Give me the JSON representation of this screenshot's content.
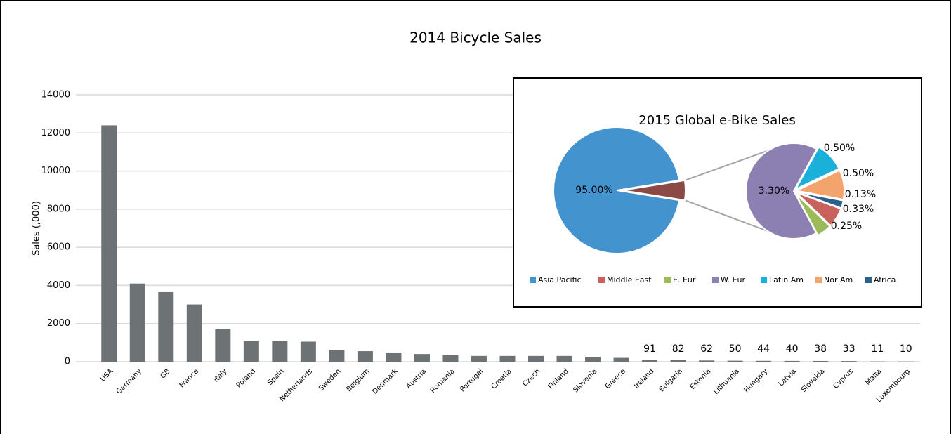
{
  "chart_data": [
    {
      "type": "bar",
      "title": "2014 Bicycle Sales",
      "y_label": "Sales (,000)",
      "categories": [
        "USA",
        "Germany",
        "GB",
        "France",
        "Italy",
        "Poland",
        "Spain",
        "Netherlands",
        "Sweden",
        "Belgium",
        "Denmark",
        "Austria",
        "Romania",
        "Portugal",
        "Croatia",
        "Czech",
        "Finland",
        "Slovenia",
        "Greece",
        "Ireland",
        "Bulgaria",
        "Estonia",
        "Lithuania",
        "Hungary",
        "Latvia",
        "Slovakia",
        "Cyprus",
        "Malta",
        "Luxembourg"
      ],
      "values": [
        12400,
        4100,
        3650,
        3000,
        1700,
        1100,
        1100,
        1050,
        600,
        550,
        480,
        400,
        350,
        300,
        300,
        300,
        300,
        250,
        200,
        91,
        82,
        62,
        50,
        44,
        40,
        38,
        33,
        11,
        10
      ],
      "value_labels": [
        null,
        null,
        null,
        null,
        null,
        null,
        null,
        null,
        null,
        null,
        null,
        null,
        null,
        null,
        null,
        null,
        null,
        null,
        null,
        "91",
        "82",
        "62",
        "50",
        "44",
        "40",
        "38",
        "33",
        "11",
        "10"
      ],
      "color": "#6d7275",
      "ylim": [
        0,
        14000
      ],
      "yticks": [
        0,
        2000,
        4000,
        6000,
        8000,
        10000,
        12000,
        14000
      ],
      "grid": true
    },
    {
      "type": "pie",
      "title": "2015 Global e-Bike Sales",
      "categories": [
        "Asia Pacific",
        "Middle East",
        "E. Eur",
        "W. Eur",
        "Latin Am",
        "Nor Am",
        "Africa"
      ],
      "values": [
        95,
        0.33,
        0.25,
        3.3,
        0.5,
        0.5,
        0.13
      ],
      "value_labels": [
        "95.00%",
        "0.33%",
        "0.25%",
        "3.30%",
        "0.50%",
        "0.50%",
        "0.13%"
      ],
      "colors": [
        "#4393cf",
        "#c9625d",
        "#9bbb59",
        "#8c80b3",
        "#19b0d9",
        "#f2a46c",
        "#2d5f8b"
      ],
      "other_color": "#8c4a46"
    }
  ]
}
